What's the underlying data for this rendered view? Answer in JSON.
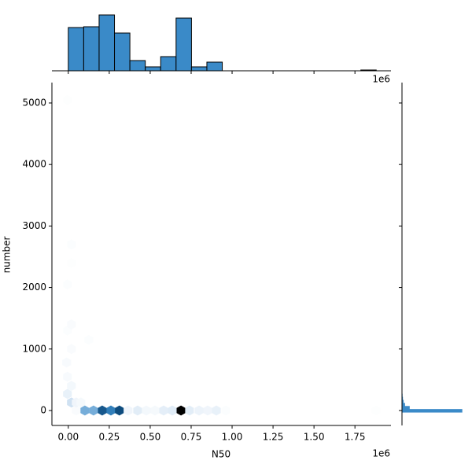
{
  "chart_data": {
    "type": "hexbin",
    "x_label": "N50",
    "y_label": "number",
    "x_offset_label": "1e6",
    "xlim": [
      -100000,
      1970000
    ],
    "ylim": [
      -243,
      5332
    ],
    "xticks": [
      {
        "value": 0,
        "label": "0.00"
      },
      {
        "value": 250000,
        "label": "0.25"
      },
      {
        "value": 500000,
        "label": "0.50"
      },
      {
        "value": 750000,
        "label": "0.75"
      },
      {
        "value": 1000000,
        "label": "1.00"
      },
      {
        "value": 1250000,
        "label": "1.25"
      },
      {
        "value": 1500000,
        "label": "1.50"
      },
      {
        "value": 1750000,
        "label": "1.75"
      }
    ],
    "yticks": [
      0,
      1000,
      2000,
      3000,
      4000,
      5000
    ],
    "colors": [
      "#ffffff",
      "#cfe1f2",
      "#3a8ac8",
      "#0e4c7e",
      "#000000"
    ],
    "hexes": {
      "x": [
        48000,
        101000,
        154000,
        207000,
        260000,
        312000,
        365000,
        423000,
        476000,
        529000,
        582000,
        635000,
        688000,
        740000,
        798000,
        851000,
        904000,
        962000,
        1880000,
        19000,
        48000,
        77000,
        -5000,
        19000,
        -5000,
        -10000,
        19000,
        125000,
        -5000,
        19000,
        -5000,
        19000,
        19000,
        -5000
      ],
      "y": [
        0,
        0,
        0,
        0,
        0,
        0,
        0,
        0,
        0,
        0,
        0,
        0,
        0,
        0,
        0,
        0,
        0,
        0,
        0,
        130,
        130,
        130,
        270,
        400,
        550,
        780,
        1000,
        1150,
        1300,
        1400,
        2050,
        2400,
        2700,
        5050
      ],
      "counts": [
        3,
        40,
        40,
        70,
        55,
        75,
        8,
        15,
        6,
        5,
        14,
        16,
        100,
        15,
        10,
        8,
        12,
        2,
        1,
        25,
        8,
        5,
        12,
        6,
        4,
        4,
        3,
        2,
        2,
        3,
        2,
        1,
        2,
        1
      ]
    },
    "marginal_x": {
      "ylim": [
        0,
        80
      ],
      "color": "#3a8ac8",
      "bins": [
        0,
        94000,
        188000,
        282000,
        376000,
        470000,
        564000,
        658000,
        752000,
        846000,
        940000,
        1034000,
        1128000,
        1222000,
        1316000,
        1410000,
        1504000,
        1598000,
        1692000,
        1786000,
        1880000
      ],
      "counts": [
        55,
        56,
        71,
        48,
        13,
        5,
        18,
        67,
        5,
        11,
        0,
        0,
        0,
        0,
        0,
        0,
        0,
        0,
        0,
        1
      ]
    },
    "marginal_y": {
      "xlim": [
        0,
        360
      ],
      "color": "#3a8ac8",
      "bins": [
        -30,
        20,
        70,
        120,
        170,
        220,
        270
      ],
      "counts": [
        320,
        40,
        15,
        8,
        4,
        2
      ]
    }
  }
}
